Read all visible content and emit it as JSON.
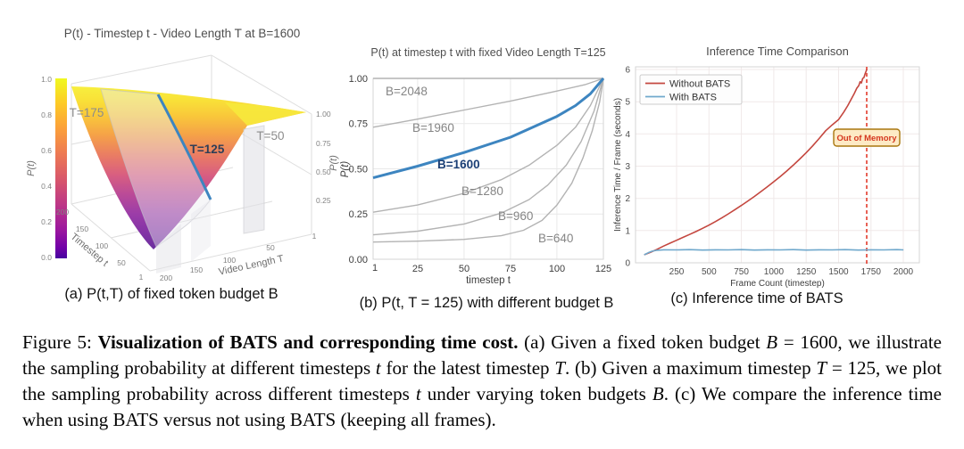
{
  "figure": {
    "subcaptions": {
      "a": "(a) P(t,T) of fixed token budget B",
      "b": "(b) P(t, T = 125) with different budget B",
      "c": "(c) Inference time of BATS"
    },
    "caption": {
      "segments": [
        {
          "text": "Figure 5: ",
          "style": "normal"
        },
        {
          "text": "Visualization of BATS and corresponding time cost.",
          "style": "bold"
        },
        {
          "text": " (a) Given a fixed token budget ",
          "style": "normal"
        },
        {
          "text": "B",
          "style": "italic"
        },
        {
          "text": " = 1600, we illustrate the sampling probability at different timesteps ",
          "style": "normal"
        },
        {
          "text": "t",
          "style": "italic"
        },
        {
          "text": " for the latest timestep ",
          "style": "normal"
        },
        {
          "text": "T",
          "style": "italic"
        },
        {
          "text": ". (b) Given a maximum timestep ",
          "style": "normal"
        },
        {
          "text": "T",
          "style": "italic"
        },
        {
          "text": " = 125, we plot the sampling probability across different timesteps ",
          "style": "normal"
        },
        {
          "text": "t",
          "style": "italic"
        },
        {
          "text": " under varying token budgets ",
          "style": "normal"
        },
        {
          "text": "B",
          "style": "italic"
        },
        {
          "text": ". (c) We compare the inference time when using BATS versus not using BATS (keeping all frames).",
          "style": "normal"
        }
      ]
    }
  },
  "chart_data": [
    {
      "type": "surface",
      "title": "P(t) - Timestep t - Video Length T at B=1600",
      "xlabel": "Timestep t",
      "ylabel": "Video Length T",
      "zlabel": "P(t)",
      "fixed_budget": 1600,
      "colorbar": {
        "label": "P(t)",
        "ticks": [
          "1.0",
          "0.8",
          "0.6",
          "0.4",
          "0.2",
          "0.0"
        ]
      },
      "x_ticks": [
        "200",
        "150",
        "100",
        "50",
        "1"
      ],
      "y_ticks": [
        "200",
        "150",
        "100",
        "50",
        "1"
      ],
      "z_ticks": [
        "1.00",
        "0.75",
        "0.50",
        "0.25"
      ],
      "z_axis_end_tick": "1",
      "slice_labels": [
        "T=175",
        "T=125",
        "T=50"
      ],
      "highlighted_slice": "T=125",
      "z_range": [
        0,
        1
      ]
    },
    {
      "type": "line",
      "title": "P(t) at timestep t with fixed Video Length T=125",
      "xlabel": "timestep t",
      "ylabel": "P(t)",
      "xlim": [
        1,
        125
      ],
      "ylim": [
        0,
        1
      ],
      "x_ticks": [
        "1",
        "25",
        "50",
        "75",
        "100",
        "125"
      ],
      "y_ticks": [
        "1.00",
        "0.75",
        "0.50",
        "0.25",
        "0.00"
      ],
      "grid": true,
      "series": [
        {
          "name": "B=2048",
          "color": "#b3b3b3",
          "points": [
            [
              1,
              1.0
            ],
            [
              125,
              1.0
            ]
          ]
        },
        {
          "name": "B=1960",
          "color": "#b3b3b3",
          "points": [
            [
              1,
              0.73
            ],
            [
              25,
              0.775
            ],
            [
              50,
              0.825
            ],
            [
              75,
              0.875
            ],
            [
              100,
              0.93
            ],
            [
              115,
              0.965
            ],
            [
              125,
              1.0
            ]
          ]
        },
        {
          "name": "B=1600",
          "color": "#3d85c0",
          "highlight": true,
          "points": [
            [
              1,
              0.45
            ],
            [
              25,
              0.515
            ],
            [
              50,
              0.59
            ],
            [
              75,
              0.675
            ],
            [
              100,
              0.79
            ],
            [
              110,
              0.85
            ],
            [
              118,
              0.915
            ],
            [
              125,
              1.0
            ]
          ]
        },
        {
          "name": "B=1280",
          "color": "#b3b3b3",
          "points": [
            [
              1,
              0.26
            ],
            [
              25,
              0.3
            ],
            [
              50,
              0.365
            ],
            [
              70,
              0.44
            ],
            [
              85,
              0.52
            ],
            [
              100,
              0.63
            ],
            [
              110,
              0.73
            ],
            [
              118,
              0.85
            ],
            [
              125,
              1.0
            ]
          ]
        },
        {
          "name": "B=960",
          "color": "#b3b3b3",
          "points": [
            [
              1,
              0.135
            ],
            [
              25,
              0.155
            ],
            [
              50,
              0.195
            ],
            [
              70,
              0.255
            ],
            [
              85,
              0.33
            ],
            [
              95,
              0.41
            ],
            [
              105,
              0.52
            ],
            [
              113,
              0.65
            ],
            [
              120,
              0.82
            ],
            [
              125,
              1.0
            ]
          ]
        },
        {
          "name": "B=640",
          "color": "#b3b3b3",
          "points": [
            [
              1,
              0.095
            ],
            [
              25,
              0.1
            ],
            [
              50,
              0.11
            ],
            [
              70,
              0.13
            ],
            [
              82,
              0.16
            ],
            [
              92,
              0.215
            ],
            [
              100,
              0.3
            ],
            [
              108,
              0.42
            ],
            [
              114,
              0.56
            ],
            [
              119,
              0.71
            ],
            [
              123,
              0.87
            ],
            [
              125,
              1.0
            ]
          ]
        }
      ]
    },
    {
      "type": "line",
      "title": "Inference Time Comparison",
      "xlabel": "Frame Count (timestep)",
      "ylabel": "Inference Time / Frame (seconds)",
      "xlim": [
        0,
        2000
      ],
      "ylim": [
        0,
        6
      ],
      "x_ticks": [
        "250",
        "500",
        "750",
        "1000",
        "1250",
        "1500",
        "1750",
        "2000"
      ],
      "y_ticks": [
        "6",
        "5",
        "4",
        "3",
        "2",
        "1",
        "0"
      ],
      "grid": true,
      "legend_position": "upper left",
      "series": [
        {
          "name": "Without BATS",
          "color": "#c4473f",
          "points": [
            [
              0,
              0.25
            ],
            [
              50,
              0.33
            ],
            [
              100,
              0.42
            ],
            [
              150,
              0.52
            ],
            [
              200,
              0.61
            ],
            [
              250,
              0.7
            ],
            [
              300,
              0.79
            ],
            [
              350,
              0.88
            ],
            [
              400,
              0.97
            ],
            [
              450,
              1.07
            ],
            [
              500,
              1.17
            ],
            [
              550,
              1.28
            ],
            [
              600,
              1.4
            ],
            [
              650,
              1.52
            ],
            [
              700,
              1.65
            ],
            [
              750,
              1.78
            ],
            [
              800,
              1.92
            ],
            [
              850,
              2.06
            ],
            [
              900,
              2.21
            ],
            [
              950,
              2.36
            ],
            [
              1000,
              2.52
            ],
            [
              1050,
              2.68
            ],
            [
              1100,
              2.85
            ],
            [
              1150,
              3.03
            ],
            [
              1200,
              3.22
            ],
            [
              1250,
              3.42
            ],
            [
              1300,
              3.63
            ],
            [
              1350,
              3.86
            ],
            [
              1400,
              4.1
            ],
            [
              1450,
              4.28
            ],
            [
              1500,
              4.45
            ],
            [
              1540,
              4.68
            ],
            [
              1570,
              4.88
            ],
            [
              1600,
              5.1
            ],
            [
              1620,
              5.25
            ],
            [
              1640,
              5.42
            ],
            [
              1655,
              5.5
            ],
            [
              1665,
              5.62
            ],
            [
              1675,
              5.58
            ],
            [
              1685,
              5.72
            ],
            [
              1695,
              5.75
            ],
            [
              1705,
              5.88
            ],
            [
              1712,
              5.95
            ],
            [
              1716,
              6.0
            ]
          ]
        },
        {
          "name": "With BATS",
          "color": "#6fa8cc",
          "points": [
            [
              0,
              0.25
            ],
            [
              30,
              0.31
            ],
            [
              60,
              0.36
            ],
            [
              100,
              0.39
            ],
            [
              150,
              0.405
            ],
            [
              250,
              0.4
            ],
            [
              350,
              0.41
            ],
            [
              450,
              0.395
            ],
            [
              550,
              0.405
            ],
            [
              650,
              0.4
            ],
            [
              750,
              0.41
            ],
            [
              850,
              0.395
            ],
            [
              950,
              0.405
            ],
            [
              1050,
              0.4
            ],
            [
              1150,
              0.41
            ],
            [
              1250,
              0.395
            ],
            [
              1350,
              0.405
            ],
            [
              1450,
              0.4
            ],
            [
              1550,
              0.41
            ],
            [
              1650,
              0.395
            ],
            [
              1750,
              0.405
            ],
            [
              1850,
              0.4
            ],
            [
              1950,
              0.41
            ],
            [
              2000,
              0.4
            ]
          ]
        }
      ],
      "annotations": [
        {
          "text": "Out of Memory",
          "x": 1720,
          "style": "vline-dashed-red"
        }
      ]
    }
  ],
  "colors": {
    "highlight_blue": "#3d85c0",
    "highlight_label_navy": "#1b3f75",
    "curve_gray": "#b3b3b3",
    "without_bats_red": "#c4473f",
    "with_bats_blue": "#6fa8cc",
    "oom_text_red": "#d5371f",
    "oom_badge_bg": "#fdeac5",
    "oom_badge_border": "#a9770f",
    "oom_dashed_line": "#e23b2c",
    "surface_top_yellow": "#f8ef3e",
    "surface_bottom_purple": "#6b2f9e"
  }
}
